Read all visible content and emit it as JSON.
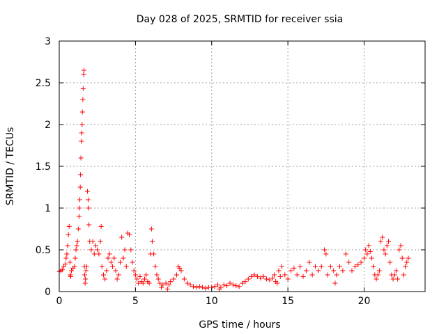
{
  "chart_data": {
    "type": "scatter",
    "title": "Day 028 of 2025, SRMTID for receiver ssia",
    "xlabel": "GPS time / hours",
    "ylabel": "SRMTID / TECUs",
    "xlim": [
      0,
      24
    ],
    "ylim": [
      0,
      3
    ],
    "x_ticks": [
      0,
      5,
      10,
      15,
      20
    ],
    "x_tick_labels": [
      "0",
      "5",
      "10",
      "15",
      "20"
    ],
    "y_ticks": [
      0,
      0.5,
      1,
      1.5,
      2,
      2.5,
      3
    ],
    "y_tick_labels": [
      "0",
      "0.5",
      "1",
      "1.5",
      "2",
      "2.5",
      "3"
    ],
    "grid": true,
    "marker": "plus",
    "colors": {
      "points": "#ff0000",
      "grid": "#a0a0a0",
      "axes": "#000000"
    },
    "series": [
      {
        "name": "SRMTID",
        "points": [
          [
            0.0,
            0.24
          ],
          [
            0.1,
            0.25
          ],
          [
            0.2,
            0.26
          ],
          [
            0.3,
            0.3
          ],
          [
            0.4,
            0.33
          ],
          [
            0.45,
            0.4
          ],
          [
            0.5,
            0.45
          ],
          [
            0.55,
            0.55
          ],
          [
            0.6,
            0.68
          ],
          [
            0.65,
            0.78
          ],
          [
            0.7,
            0.35
          ],
          [
            0.72,
            0.2
          ],
          [
            0.75,
            0.18
          ],
          [
            0.8,
            0.25
          ],
          [
            0.9,
            0.28
          ],
          [
            1.0,
            0.3
          ],
          [
            1.05,
            0.4
          ],
          [
            1.1,
            0.5
          ],
          [
            1.15,
            0.55
          ],
          [
            1.2,
            0.6
          ],
          [
            1.25,
            0.75
          ],
          [
            1.3,
            0.9
          ],
          [
            1.32,
            1.0
          ],
          [
            1.35,
            1.1
          ],
          [
            1.38,
            1.25
          ],
          [
            1.4,
            1.4
          ],
          [
            1.42,
            1.6
          ],
          [
            1.45,
            1.8
          ],
          [
            1.47,
            1.9
          ],
          [
            1.5,
            2.0
          ],
          [
            1.52,
            2.15
          ],
          [
            1.55,
            2.3
          ],
          [
            1.57,
            2.43
          ],
          [
            1.6,
            2.6
          ],
          [
            1.62,
            2.65
          ],
          [
            1.65,
            0.3
          ],
          [
            1.67,
            0.2
          ],
          [
            1.7,
            0.1
          ],
          [
            1.72,
            0.15
          ],
          [
            1.75,
            0.25
          ],
          [
            1.8,
            0.3
          ],
          [
            1.85,
            1.2
          ],
          [
            1.9,
            1.1
          ],
          [
            1.92,
            1.0
          ],
          [
            1.95,
            0.8
          ],
          [
            2.0,
            0.6
          ],
          [
            2.1,
            0.5
          ],
          [
            2.2,
            0.6
          ],
          [
            2.3,
            0.45
          ],
          [
            2.4,
            0.55
          ],
          [
            2.5,
            0.5
          ],
          [
            2.6,
            0.45
          ],
          [
            2.7,
            0.6
          ],
          [
            2.75,
            0.78
          ],
          [
            2.8,
            0.3
          ],
          [
            2.9,
            0.2
          ],
          [
            3.0,
            0.15
          ],
          [
            3.1,
            0.25
          ],
          [
            3.2,
            0.4
          ],
          [
            3.3,
            0.45
          ],
          [
            3.4,
            0.35
          ],
          [
            3.5,
            0.3
          ],
          [
            3.6,
            0.4
          ],
          [
            3.7,
            0.25
          ],
          [
            3.8,
            0.15
          ],
          [
            3.9,
            0.2
          ],
          [
            4.0,
            0.35
          ],
          [
            4.1,
            0.65
          ],
          [
            4.2,
            0.4
          ],
          [
            4.3,
            0.5
          ],
          [
            4.4,
            0.3
          ],
          [
            4.5,
            0.7
          ],
          [
            4.6,
            0.68
          ],
          [
            4.7,
            0.5
          ],
          [
            4.8,
            0.35
          ],
          [
            4.9,
            0.25
          ],
          [
            5.0,
            0.2
          ],
          [
            5.1,
            0.15
          ],
          [
            5.2,
            0.1
          ],
          [
            5.3,
            0.18
          ],
          [
            5.4,
            0.12
          ],
          [
            5.5,
            0.1
          ],
          [
            5.6,
            0.15
          ],
          [
            5.7,
            0.2
          ],
          [
            5.8,
            0.12
          ],
          [
            5.9,
            0.1
          ],
          [
            6.0,
            0.45
          ],
          [
            6.05,
            0.75
          ],
          [
            6.1,
            0.6
          ],
          [
            6.2,
            0.45
          ],
          [
            6.3,
            0.3
          ],
          [
            6.4,
            0.2
          ],
          [
            6.5,
            0.15
          ],
          [
            6.6,
            0.1
          ],
          [
            6.7,
            0.05
          ],
          [
            6.8,
            0.08
          ],
          [
            7.0,
            0.1
          ],
          [
            7.1,
            0.03
          ],
          [
            7.2,
            0.08
          ],
          [
            7.3,
            0.12
          ],
          [
            7.5,
            0.15
          ],
          [
            7.7,
            0.2
          ],
          [
            7.8,
            0.3
          ],
          [
            7.9,
            0.28
          ],
          [
            8.0,
            0.25
          ],
          [
            8.2,
            0.15
          ],
          [
            8.4,
            0.1
          ],
          [
            8.6,
            0.08
          ],
          [
            8.8,
            0.06
          ],
          [
            9.0,
            0.05
          ],
          [
            9.2,
            0.06
          ],
          [
            9.4,
            0.05
          ],
          [
            9.6,
            0.04
          ],
          [
            9.8,
            0.05
          ],
          [
            10.0,
            0.05
          ],
          [
            10.2,
            0.06
          ],
          [
            10.4,
            0.08
          ],
          [
            10.5,
            0.03
          ],
          [
            10.6,
            0.05
          ],
          [
            10.8,
            0.08
          ],
          [
            11.0,
            0.07
          ],
          [
            11.2,
            0.1
          ],
          [
            11.4,
            0.08
          ],
          [
            11.6,
            0.07
          ],
          [
            11.8,
            0.06
          ],
          [
            12.0,
            0.1
          ],
          [
            12.2,
            0.12
          ],
          [
            12.4,
            0.15
          ],
          [
            12.6,
            0.18
          ],
          [
            12.8,
            0.2
          ],
          [
            13.0,
            0.18
          ],
          [
            13.2,
            0.16
          ],
          [
            13.4,
            0.18
          ],
          [
            13.6,
            0.15
          ],
          [
            13.8,
            0.14
          ],
          [
            14.0,
            0.16
          ],
          [
            14.1,
            0.2
          ],
          [
            14.2,
            0.12
          ],
          [
            14.3,
            0.1
          ],
          [
            14.4,
            0.25
          ],
          [
            14.5,
            0.18
          ],
          [
            14.6,
            0.3
          ],
          [
            14.8,
            0.2
          ],
          [
            15.0,
            0.15
          ],
          [
            15.2,
            0.25
          ],
          [
            15.4,
            0.28
          ],
          [
            15.6,
            0.2
          ],
          [
            15.8,
            0.3
          ],
          [
            16.0,
            0.18
          ],
          [
            16.2,
            0.25
          ],
          [
            16.4,
            0.35
          ],
          [
            16.6,
            0.2
          ],
          [
            16.8,
            0.3
          ],
          [
            17.0,
            0.25
          ],
          [
            17.2,
            0.3
          ],
          [
            17.4,
            0.5
          ],
          [
            17.5,
            0.45
          ],
          [
            17.6,
            0.2
          ],
          [
            17.8,
            0.3
          ],
          [
            18.0,
            0.25
          ],
          [
            18.1,
            0.1
          ],
          [
            18.2,
            0.2
          ],
          [
            18.4,
            0.3
          ],
          [
            18.6,
            0.25
          ],
          [
            18.8,
            0.45
          ],
          [
            19.0,
            0.35
          ],
          [
            19.2,
            0.25
          ],
          [
            19.4,
            0.3
          ],
          [
            19.6,
            0.32
          ],
          [
            19.8,
            0.35
          ],
          [
            20.0,
            0.4
          ],
          [
            20.1,
            0.5
          ],
          [
            20.2,
            0.45
          ],
          [
            20.3,
            0.55
          ],
          [
            20.4,
            0.48
          ],
          [
            20.5,
            0.4
          ],
          [
            20.6,
            0.3
          ],
          [
            20.7,
            0.2
          ],
          [
            20.8,
            0.15
          ],
          [
            20.9,
            0.2
          ],
          [
            21.0,
            0.25
          ],
          [
            21.1,
            0.6
          ],
          [
            21.2,
            0.65
          ],
          [
            21.3,
            0.5
          ],
          [
            21.4,
            0.45
          ],
          [
            21.5,
            0.55
          ],
          [
            21.6,
            0.6
          ],
          [
            21.7,
            0.35
          ],
          [
            21.8,
            0.2
          ],
          [
            21.9,
            0.15
          ],
          [
            22.0,
            0.2
          ],
          [
            22.1,
            0.25
          ],
          [
            22.2,
            0.15
          ],
          [
            22.3,
            0.5
          ],
          [
            22.4,
            0.55
          ],
          [
            22.5,
            0.4
          ],
          [
            22.6,
            0.2
          ],
          [
            22.7,
            0.3
          ],
          [
            22.8,
            0.35
          ],
          [
            22.9,
            0.4
          ]
        ]
      }
    ]
  }
}
